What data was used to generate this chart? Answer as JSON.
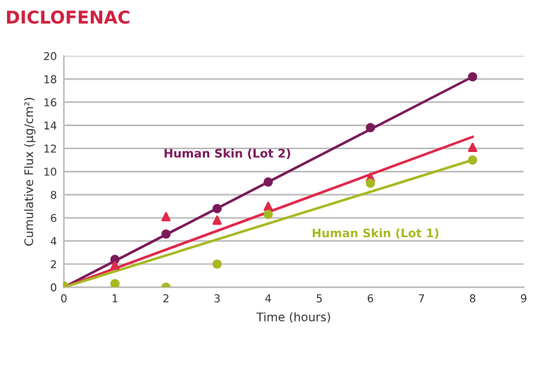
{
  "chart_data": {
    "type": "scatter",
    "title": "DICLOFENAC",
    "xlabel": "Time (hours)",
    "ylabel": "Cumulative Flux (µg/cm²)",
    "xlim": [
      0,
      9
    ],
    "xticks": [
      0,
      1,
      2,
      3,
      4,
      5,
      6,
      7,
      8,
      9
    ],
    "ylim": [
      0,
      20
    ],
    "yticks": [
      0,
      2,
      4,
      6,
      8,
      10,
      12,
      14,
      16,
      18,
      20
    ],
    "grid": "y",
    "series": [
      {
        "name": "Human Skin (Lot 2)",
        "color": "#7a1a5a",
        "marker": "circle",
        "x": [
          0,
          1,
          2,
          3,
          4,
          6,
          8
        ],
        "values": [
          0,
          2.4,
          4.6,
          6.8,
          9.1,
          13.8,
          18.2
        ]
      },
      {
        "color": "#e0284a",
        "marker": "triangle",
        "x": [
          0,
          1,
          2,
          3,
          4,
          6,
          8
        ],
        "values": [
          0,
          1.9,
          6.1,
          5.8,
          7.0,
          9.5,
          12.1
        ]
      },
      {
        "name": "Human Skin (Lot 1)",
        "color": "#a8b820",
        "marker": "circle",
        "x": [
          0,
          1,
          2,
          3,
          4,
          6,
          8
        ],
        "values": [
          0.1,
          0.3,
          0,
          2.0,
          6.3,
          9.0,
          11.0
        ]
      },
      {
        "type": "line",
        "color": "#7a1a5a",
        "x": [
          0,
          8
        ],
        "values": [
          0,
          18.2
        ]
      },
      {
        "type": "line",
        "color": "#e0284a",
        "x": [
          0,
          8
        ],
        "values": [
          0,
          13.0
        ]
      },
      {
        "type": "line",
        "color": "#a8b820",
        "x": [
          0,
          8
        ],
        "values": [
          0,
          11.0
        ]
      }
    ]
  }
}
